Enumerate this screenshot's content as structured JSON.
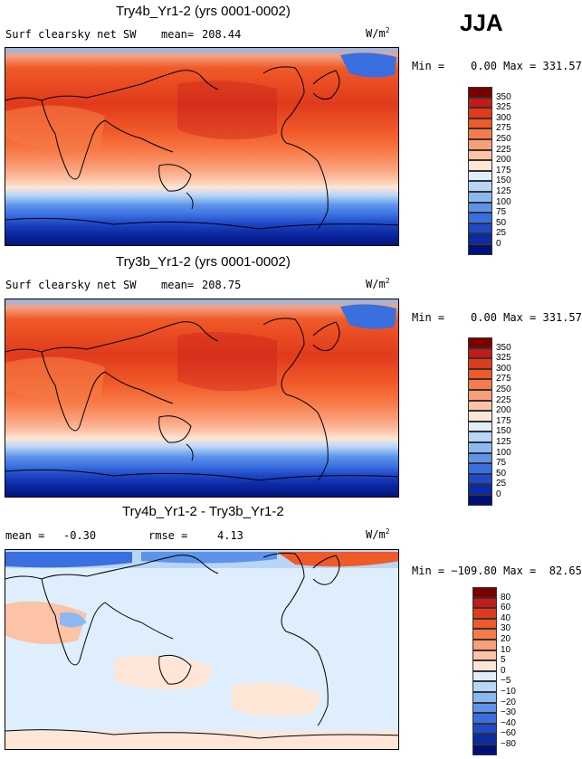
{
  "season": "JJA",
  "panels": [
    {
      "title": "Try4b_Yr1-2 (yrs 0001-0002)",
      "variable": "Surf clearsky net SW",
      "mean_label": "mean=",
      "mean_value": "208.44",
      "units": "W/m",
      "units_sup": "2",
      "minmax": "Min =    0.00 Max = 331.57",
      "colorbar": {
        "colors": [
          "#7a0000",
          "#c41a1a",
          "#e03a1c",
          "#f05a28",
          "#f77b48",
          "#fa9e78",
          "#fcc3a6",
          "#fde6d5",
          "#dfeefc",
          "#b8d6f8",
          "#8cb8f2",
          "#5d94ea",
          "#3a6fe0",
          "#1f49c8",
          "#0c2aa4",
          "#001078"
        ],
        "labels": [
          "350",
          "325",
          "300",
          "275",
          "250",
          "225",
          "200",
          "175",
          "150",
          "125",
          "100",
          "75",
          "50",
          "25",
          "0"
        ]
      }
    },
    {
      "title": "Try3b_Yr1-2 (yrs 0001-0002)",
      "variable": "Surf clearsky net SW",
      "mean_label": "mean=",
      "mean_value": "208.75",
      "units": "W/m",
      "units_sup": "2",
      "minmax": "Min =    0.00 Max = 331.57",
      "colorbar": {
        "colors": [
          "#7a0000",
          "#c41a1a",
          "#e03a1c",
          "#f05a28",
          "#f77b48",
          "#fa9e78",
          "#fcc3a6",
          "#fde6d5",
          "#dfeefc",
          "#b8d6f8",
          "#8cb8f2",
          "#5d94ea",
          "#3a6fe0",
          "#1f49c8",
          "#0c2aa4",
          "#001078"
        ],
        "labels": [
          "350",
          "325",
          "300",
          "275",
          "250",
          "225",
          "200",
          "175",
          "150",
          "125",
          "100",
          "75",
          "50",
          "25",
          "0"
        ]
      }
    },
    {
      "title": "Try4b_Yr1-2 - Try3b_Yr1-2",
      "mean_label": "mean =",
      "mean_value": "-0.30",
      "rmse_label": "rmse =",
      "rmse_value": "4.13",
      "units": "W/m",
      "units_sup": "2",
      "minmax": "Min = −109.80 Max =  82.65",
      "colorbar": {
        "colors": [
          "#7a0000",
          "#c41a1a",
          "#e03a1c",
          "#f05a28",
          "#f77b48",
          "#fa9e78",
          "#fcc3a6",
          "#fde6d5",
          "#dfeefc",
          "#b8d6f8",
          "#8cb8f2",
          "#5d94ea",
          "#3a6fe0",
          "#1f49c8",
          "#0c2aa4",
          "#001078"
        ],
        "labels": [
          "80",
          "60",
          "40",
          "30",
          "20",
          "10",
          "5",
          "0",
          "−5",
          "−10",
          "−20",
          "−30",
          "−40",
          "−60",
          "−80"
        ]
      }
    }
  ],
  "chart_data": [
    {
      "type": "heatmap",
      "title": "Try4b_Yr1-2 (yrs 0001-0002)",
      "variable": "Surf clearsky net SW",
      "season": "JJA",
      "mean": 208.44,
      "min": 0.0,
      "max": 331.57,
      "units": "W/m2",
      "levels": [
        0,
        25,
        50,
        75,
        100,
        125,
        150,
        175,
        200,
        225,
        250,
        275,
        300,
        325,
        350
      ],
      "zonal_band_values": {
        "lat": [
          80,
          60,
          40,
          20,
          0,
          -20,
          -40,
          -60,
          -80
        ],
        "value": [
          190,
          280,
          310,
          300,
          270,
          230,
          170,
          70,
          5
        ]
      }
    },
    {
      "type": "heatmap",
      "title": "Try3b_Yr1-2 (yrs 0001-0002)",
      "variable": "Surf clearsky net SW",
      "season": "JJA",
      "mean": 208.75,
      "min": 0.0,
      "max": 331.57,
      "units": "W/m2",
      "levels": [
        0,
        25,
        50,
        75,
        100,
        125,
        150,
        175,
        200,
        225,
        250,
        275,
        300,
        325,
        350
      ],
      "zonal_band_values": {
        "lat": [
          80,
          60,
          40,
          20,
          0,
          -20,
          -40,
          -60,
          -80
        ],
        "value": [
          190,
          280,
          310,
          300,
          270,
          230,
          170,
          70,
          5
        ]
      }
    },
    {
      "type": "heatmap",
      "title": "Try4b_Yr1-2 - Try3b_Yr1-2",
      "season": "JJA",
      "mean": -0.3,
      "rmse": 4.13,
      "min": -109.8,
      "max": 82.65,
      "units": "W/m2",
      "levels": [
        -80,
        -60,
        -40,
        -30,
        -20,
        -10,
        -5,
        0,
        5,
        10,
        20,
        30,
        40,
        60,
        80
      ],
      "zonal_band_values": {
        "lat": [
          80,
          60,
          40,
          20,
          0,
          -20,
          -40,
          -60,
          -80
        ],
        "value": [
          -30,
          5,
          -2,
          -1,
          -1,
          -2,
          -1,
          3,
          2
        ]
      }
    }
  ]
}
